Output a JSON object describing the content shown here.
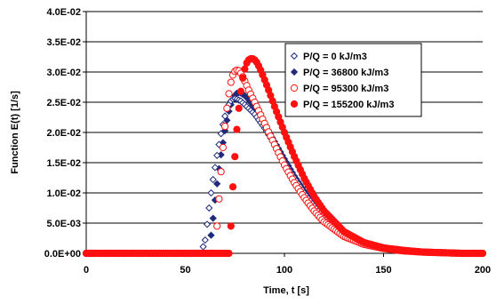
{
  "chart_data": {
    "type": "scatter",
    "title": "",
    "xlabel": "Time, t  [s]",
    "ylabel": "Function E(t)  [1/s]",
    "xlim": [
      0,
      200
    ],
    "ylim": [
      0,
      0.04
    ],
    "x_ticks": [
      "0",
      "50",
      "100",
      "150",
      "200"
    ],
    "x_tick_values": [
      0,
      50,
      100,
      150,
      200
    ],
    "y_ticks": [
      "0.0E+00",
      "5.0E-03",
      "1.0E-02",
      "1.5E-02",
      "2.0E-02",
      "2.5E-02",
      "3.0E-02",
      "3.5E-02",
      "4.0E-02"
    ],
    "y_tick_values": [
      0,
      0.005,
      0.01,
      0.015,
      0.02,
      0.025,
      0.03,
      0.035,
      0.04
    ],
    "grid": "horizontal",
    "legend_position": "top-right",
    "series": [
      {
        "name": "P/Q = 0 kJ/m3",
        "marker": "diamond-open",
        "color": "#1f2a7a",
        "x": [
          0,
          5,
          10,
          15,
          20,
          25,
          30,
          35,
          40,
          45,
          50,
          55,
          58,
          60,
          61,
          62,
          63,
          64,
          65,
          66,
          67,
          68,
          69,
          70,
          71,
          72,
          73,
          74,
          75,
          76,
          78,
          80,
          85,
          90,
          95,
          100,
          105,
          110,
          115,
          120,
          130,
          140,
          150,
          160,
          170,
          180,
          190,
          200
        ],
        "y": [
          0,
          0,
          0,
          0,
          0,
          0,
          0,
          0,
          0,
          0,
          0,
          0,
          0,
          0.0022,
          0.0048,
          0.0075,
          0.01,
          0.0122,
          0.0142,
          0.0162,
          0.018,
          0.0198,
          0.0213,
          0.0227,
          0.0238,
          0.0246,
          0.0252,
          0.0255,
          0.0256,
          0.0255,
          0.0252,
          0.0246,
          0.023,
          0.0207,
          0.018,
          0.0152,
          0.0125,
          0.01,
          0.0078,
          0.0058,
          0.0032,
          0.0017,
          0.0009,
          0.0005,
          0.0002,
          0.0001,
          0,
          0
        ]
      },
      {
        "name": "P/Q = 36800 kJ/m3",
        "marker": "diamond-filled",
        "color": "#1f2a7a",
        "x": [
          0,
          5,
          10,
          15,
          20,
          25,
          30,
          35,
          40,
          45,
          50,
          55,
          60,
          62,
          63,
          64,
          65,
          66,
          67,
          68,
          69,
          70,
          71,
          72,
          73,
          74,
          75,
          76,
          77,
          78,
          80,
          82,
          85,
          90,
          95,
          100,
          105,
          110,
          115,
          120,
          130,
          140,
          150,
          160,
          170,
          180,
          190,
          200
        ],
        "y": [
          0,
          0,
          0,
          0,
          0,
          0,
          0,
          0,
          0,
          0,
          0,
          0,
          0,
          0,
          0.003,
          0.0058,
          0.0088,
          0.0115,
          0.014,
          0.0163,
          0.0183,
          0.0203,
          0.022,
          0.0235,
          0.0246,
          0.0255,
          0.0261,
          0.0265,
          0.0266,
          0.0265,
          0.0261,
          0.0254,
          0.024,
          0.0214,
          0.0185,
          0.0156,
          0.0128,
          0.0103,
          0.008,
          0.006,
          0.0033,
          0.0018,
          0.0009,
          0.0005,
          0.0002,
          0.0001,
          0,
          0
        ]
      },
      {
        "name": "P/Q = 95300 kJ/m3",
        "marker": "circle-open",
        "color": "#ff1010",
        "x": [
          0,
          5,
          10,
          15,
          20,
          25,
          30,
          35,
          40,
          45,
          50,
          55,
          60,
          65,
          66,
          67,
          68,
          69,
          70,
          71,
          72,
          73,
          74,
          75,
          76,
          77,
          78,
          79,
          80,
          82,
          85,
          90,
          95,
          100,
          105,
          110,
          115,
          120,
          130,
          140,
          150,
          160,
          170,
          180,
          190,
          200
        ],
        "y": [
          0,
          0,
          0,
          0,
          0,
          0,
          0,
          0,
          0,
          0,
          0,
          0,
          0,
          0,
          0.0045,
          0.009,
          0.0135,
          0.0175,
          0.021,
          0.024,
          0.0264,
          0.0283,
          0.0295,
          0.0301,
          0.0303,
          0.0302,
          0.0298,
          0.0292,
          0.0285,
          0.027,
          0.025,
          0.0215,
          0.018,
          0.0146,
          0.0117,
          0.0092,
          0.007,
          0.0052,
          0.0028,
          0.0015,
          0.0008,
          0.0004,
          0.0002,
          0.0001,
          0,
          0
        ]
      },
      {
        "name": "P/Q = 155200 kJ/m3",
        "marker": "circle-filled",
        "color": "#ff1010",
        "x": [
          0,
          5,
          10,
          15,
          20,
          25,
          30,
          35,
          40,
          45,
          50,
          55,
          60,
          65,
          70,
          72,
          73,
          74,
          75,
          76,
          77,
          78,
          79,
          80,
          81,
          82,
          83,
          84,
          85,
          86,
          87,
          88,
          90,
          92,
          95,
          100,
          105,
          110,
          115,
          120,
          130,
          140,
          150,
          160,
          170,
          180,
          190,
          200
        ],
        "y": [
          0,
          0,
          0,
          0,
          0,
          0,
          0,
          0,
          0,
          0,
          0,
          0,
          0,
          0,
          0,
          0,
          0.0045,
          0.011,
          0.016,
          0.0205,
          0.024,
          0.0268,
          0.029,
          0.0305,
          0.0315,
          0.032,
          0.0322,
          0.0322,
          0.032,
          0.0316,
          0.031,
          0.0303,
          0.0287,
          0.027,
          0.0243,
          0.02,
          0.016,
          0.0124,
          0.0094,
          0.007,
          0.0036,
          0.0018,
          0.0009,
          0.0005,
          0.0002,
          0.0001,
          0,
          0
        ]
      }
    ]
  }
}
